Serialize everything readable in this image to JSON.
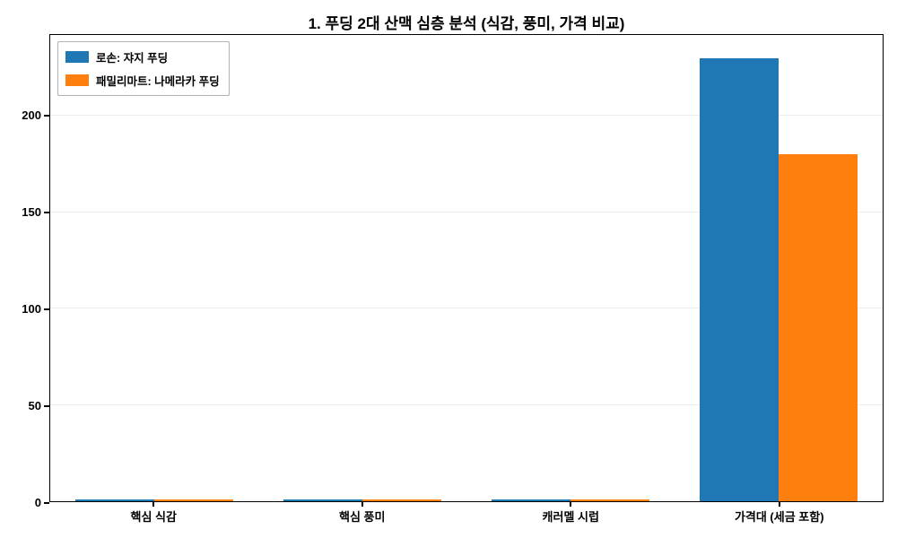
{
  "chart_data": {
    "type": "bar",
    "title": "1. 푸딩 2대 산맥 심층 분석 (식감, 풍미, 가격 비교)",
    "categories": [
      "핵심 식감",
      "핵심 풍미",
      "캐러멜 시럽",
      "가격대 (세금 포함)"
    ],
    "series": [
      {
        "name": "로손: 쟈지 푸딩",
        "color": "#1f77b4",
        "values": [
          1,
          1,
          1,
          230
        ]
      },
      {
        "name": "패밀리마트: 나메라카 푸딩",
        "color": "#ff7f0e",
        "values": [
          1,
          1,
          1,
          180
        ]
      }
    ],
    "xlabel": "",
    "ylabel": "",
    "y_ticks": [
      0,
      50,
      100,
      150,
      200
    ],
    "ylim": [
      0,
      242
    ],
    "grid": true,
    "legend_position": "upper-left"
  }
}
